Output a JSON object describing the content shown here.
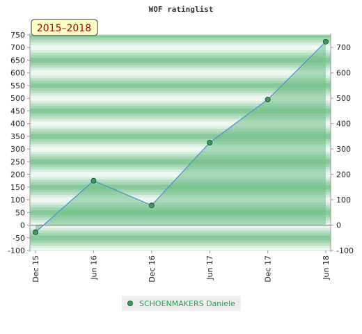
{
  "chart_data": {
    "type": "area",
    "title": "WOF ratinglist",
    "period_label": "2015–2018",
    "x": [
      "Dec 15",
      "Jun 16",
      "Dec 16",
      "Jun 17",
      "Dec 17",
      "Jun 18"
    ],
    "series": [
      {
        "name": "SCHOENMAKERS Daniele",
        "values": [
          -28,
          175,
          78,
          325,
          495,
          723
        ]
      }
    ],
    "ylim": [
      -100,
      750
    ],
    "left_axis_ticks": [
      -100,
      -50,
      0,
      50,
      100,
      150,
      200,
      250,
      300,
      350,
      400,
      450,
      500,
      550,
      600,
      650,
      700,
      750
    ],
    "right_axis_ticks": [
      -100,
      0,
      100,
      200,
      300,
      400,
      500,
      600,
      700
    ],
    "grid": true,
    "legend_position": "bottom-center",
    "colors": {
      "area_fill": "#73c08a",
      "line": "#4c8fd6",
      "marker": "#3e9a5a",
      "band_light": "#edf7f0",
      "band_dark": "#88c99b",
      "period_box": "#ffffc8",
      "period_text": "#a40000",
      "legend_text": "#2f9a55"
    }
  }
}
